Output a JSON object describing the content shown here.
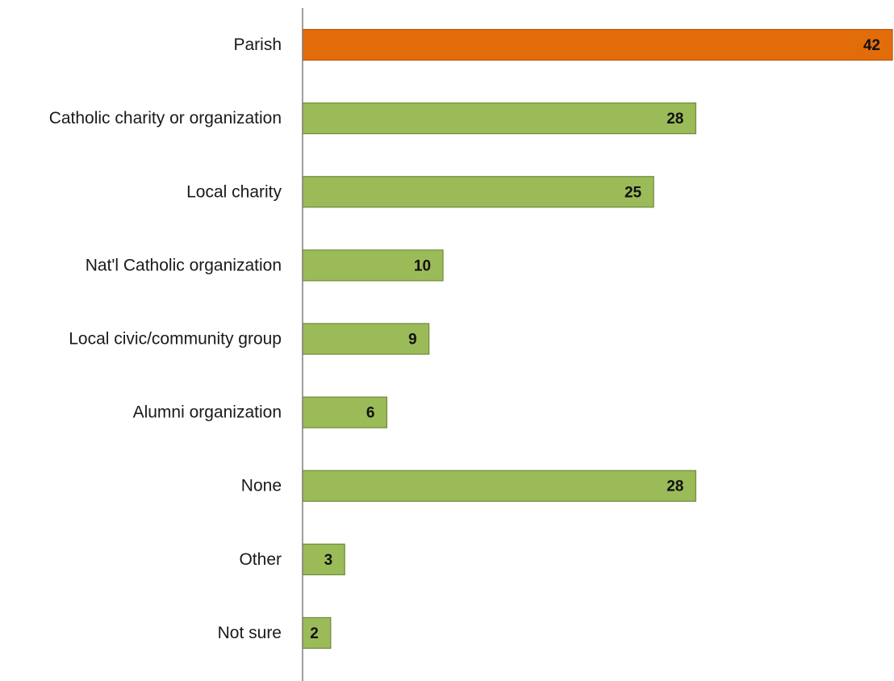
{
  "chart_data": {
    "type": "bar",
    "orientation": "horizontal",
    "categories": [
      "Parish",
      "Catholic charity or organization",
      "Local charity",
      "Nat'l Catholic organization",
      "Local civic/community group",
      "Alumni organization",
      "None",
      "Other",
      "Not sure"
    ],
    "values": [
      42,
      28,
      25,
      10,
      9,
      6,
      28,
      3,
      2
    ],
    "highlight_index": 0,
    "colors": {
      "highlight": "#E36C0A",
      "highlight_border": "#B85408",
      "bar": "#9BBB59",
      "bar_border": "#6E8A36",
      "axis": "#7F7F7F"
    },
    "data_labels": true,
    "grid": false,
    "legend": "none",
    "xlim": [
      0,
      42
    ]
  }
}
